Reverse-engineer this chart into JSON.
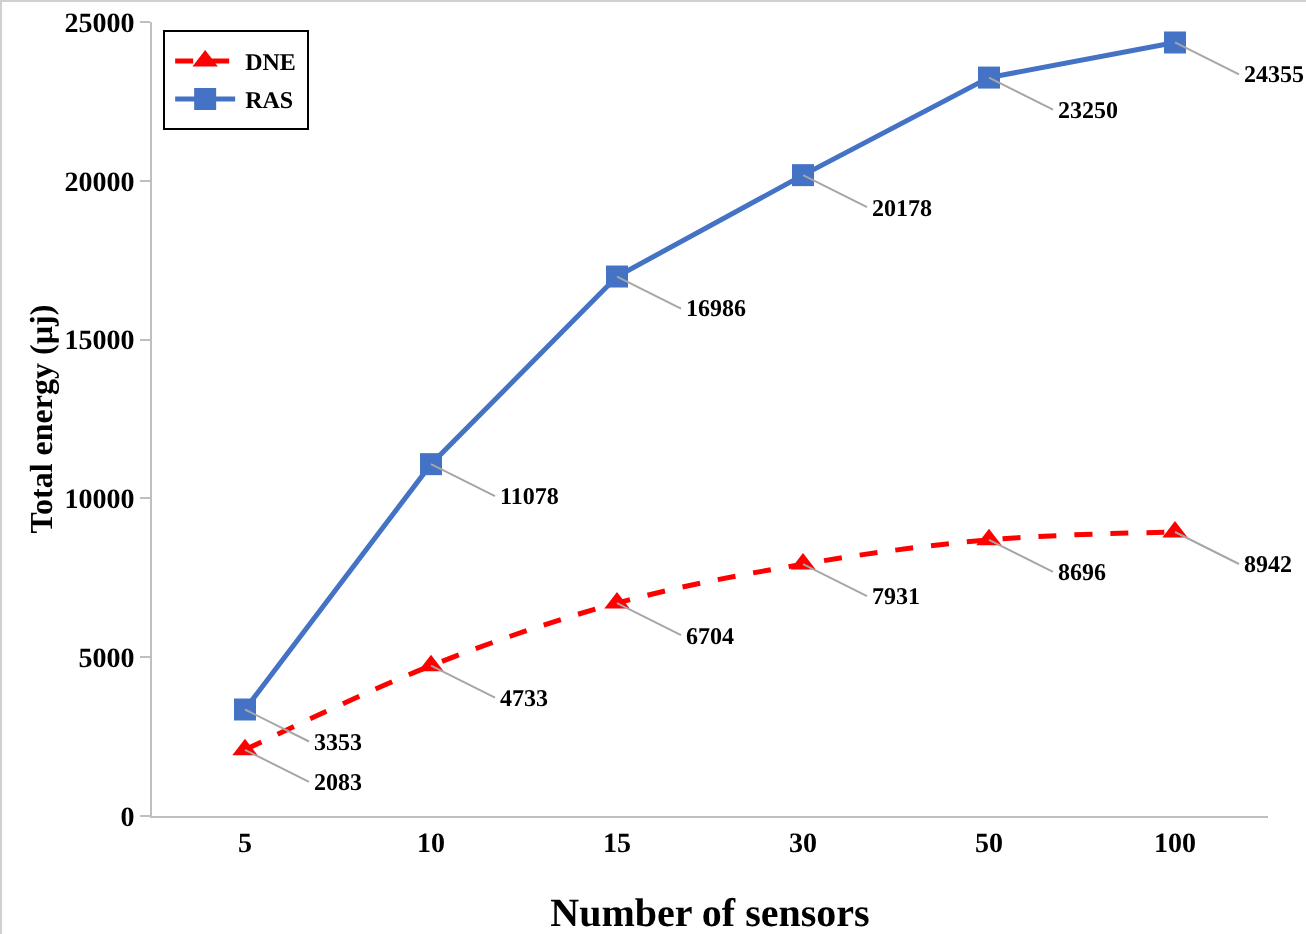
{
  "chart_data": {
    "type": "line",
    "xlabel": "Number of sensors",
    "ylabel": "Total energy (µj)",
    "categories": [
      "5",
      "10",
      "15",
      "30",
      "50",
      "100"
    ],
    "series": [
      {
        "name": "DNE",
        "color": "#ff0000",
        "marker": "triangle",
        "line_style": "dashed",
        "values": [
          2083,
          4733,
          6704,
          7931,
          8696,
          8942
        ]
      },
      {
        "name": "RAS",
        "color": "#4472c4",
        "marker": "square",
        "line_style": "solid",
        "values": [
          3353,
          11078,
          16986,
          20178,
          23250,
          24355
        ]
      }
    ],
    "ylim": [
      0,
      25000
    ],
    "yticks": [
      0,
      5000,
      10000,
      15000,
      20000,
      25000
    ],
    "grid": false,
    "legend": "top left",
    "data_labels": true
  }
}
